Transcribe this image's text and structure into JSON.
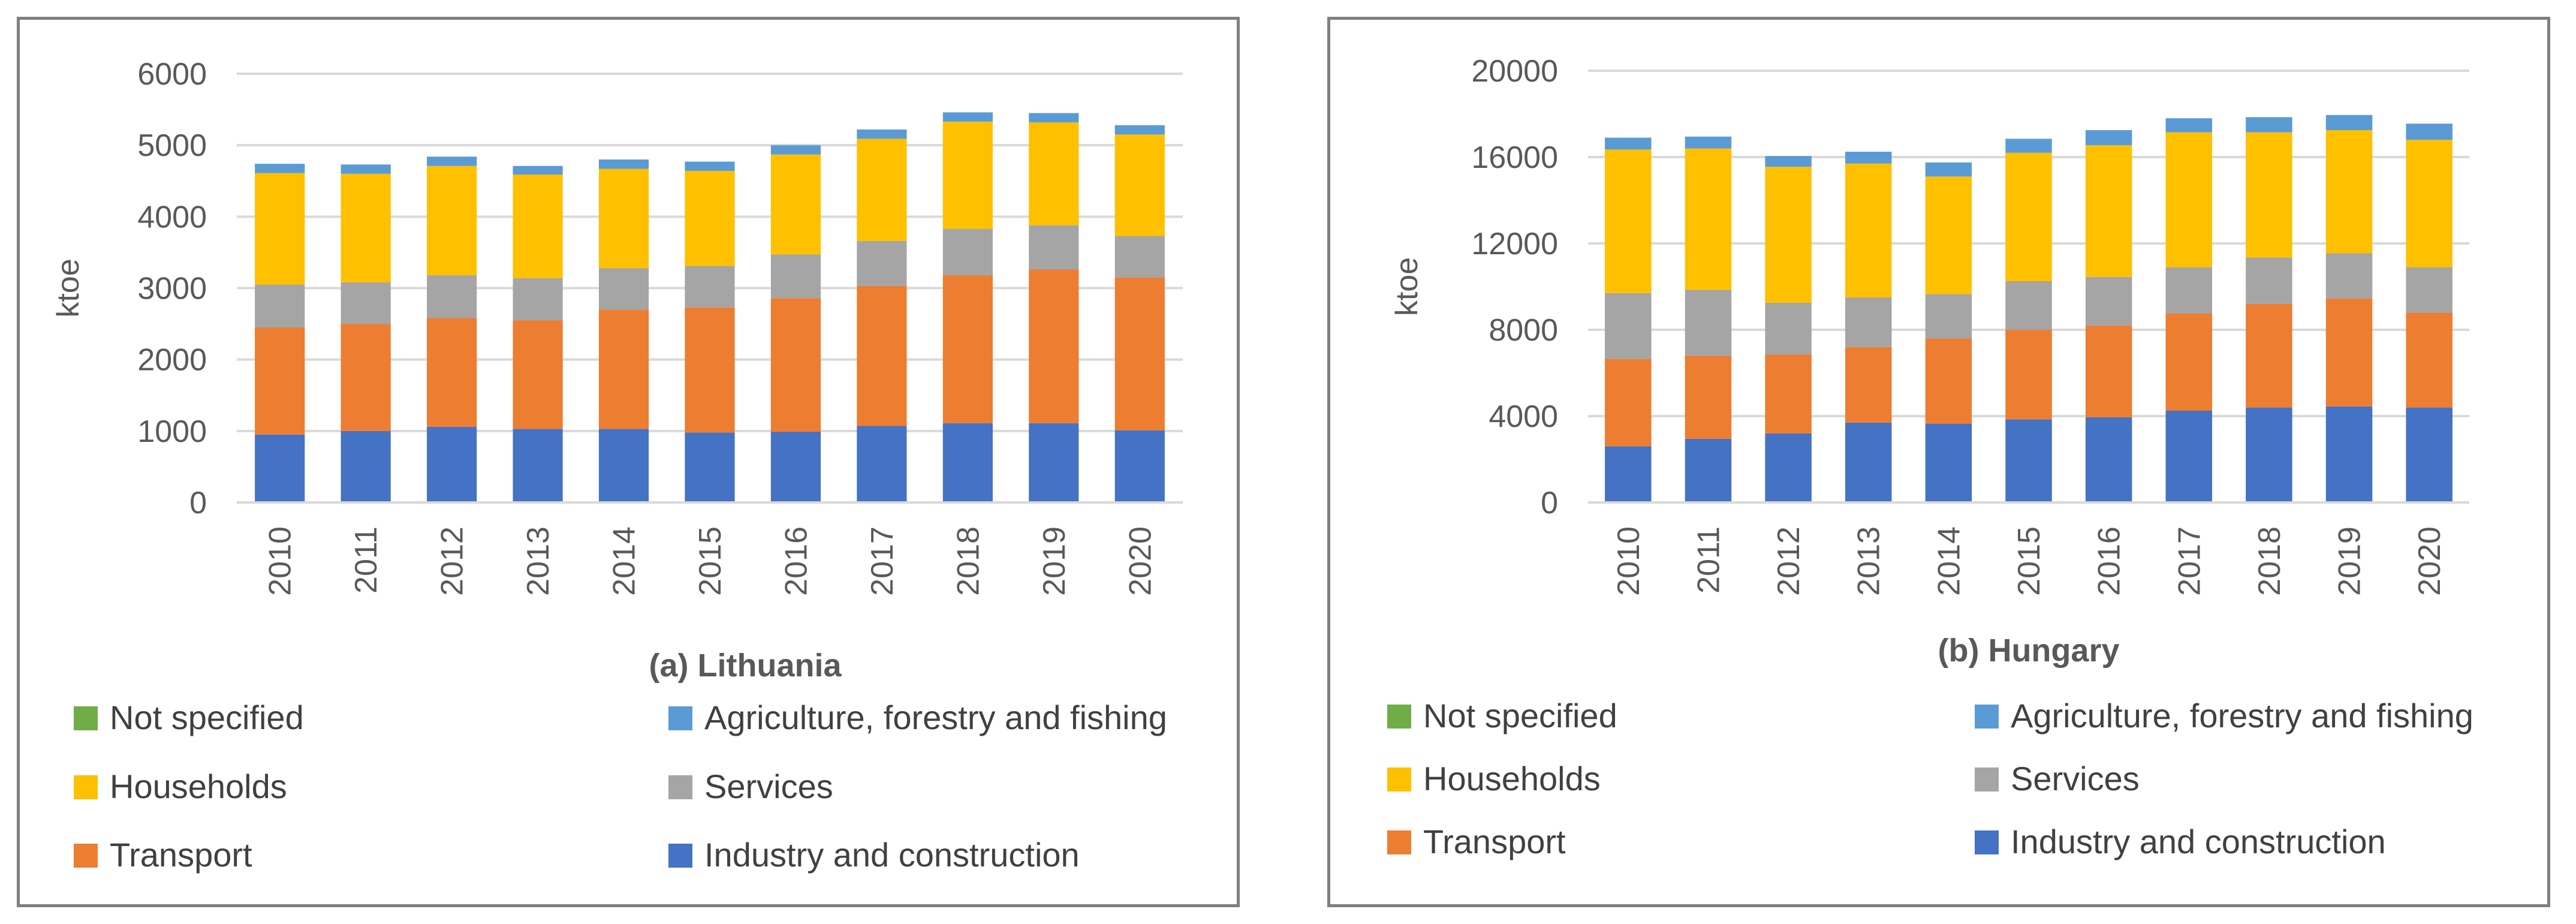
{
  "chart_data": [
    {
      "type": "bar",
      "stacked": true,
      "caption": "(a) Lithuania",
      "ylabel": "ktoe",
      "xlabel": "",
      "ylim": [
        0,
        6000
      ],
      "yticks": [
        "0",
        "1000",
        "2000",
        "3000",
        "4000",
        "5000",
        "6000"
      ],
      "categories": [
        "2010",
        "2011",
        "2012",
        "2013",
        "2014",
        "2015",
        "2016",
        "2017",
        "2018",
        "2019",
        "2020"
      ],
      "grid": true,
      "legend_position": "bottom",
      "series": [
        {
          "name": "Industry and construction",
          "color": "#4472c4",
          "values": [
            950,
            1000,
            1060,
            1030,
            1030,
            980,
            990,
            1070,
            1110,
            1110,
            1010
          ]
        },
        {
          "name": "Transport",
          "color": "#ed7d31",
          "values": [
            1500,
            1500,
            1520,
            1520,
            1670,
            1750,
            1870,
            1960,
            2070,
            2150,
            2140
          ]
        },
        {
          "name": "Services",
          "color": "#a5a5a5",
          "values": [
            600,
            580,
            600,
            590,
            580,
            580,
            610,
            630,
            650,
            620,
            580
          ]
        },
        {
          "name": "Households",
          "color": "#ffc000",
          "values": [
            1560,
            1520,
            1530,
            1450,
            1390,
            1330,
            1400,
            1430,
            1500,
            1440,
            1420
          ]
        },
        {
          "name": "Agriculture, forestry and fishing",
          "color": "#5b9bd5",
          "values": [
            130,
            130,
            130,
            120,
            130,
            130,
            130,
            130,
            130,
            130,
            130
          ]
        },
        {
          "name": "Not specified",
          "color": "#70ad47",
          "values": [
            0,
            0,
            0,
            0,
            0,
            0,
            0,
            0,
            0,
            0,
            0
          ]
        }
      ]
    },
    {
      "type": "bar",
      "stacked": true,
      "caption": "(b) Hungary",
      "ylabel": "ktoe",
      "xlabel": "",
      "ylim": [
        0,
        20000
      ],
      "yticks": [
        "0",
        "4000",
        "8000",
        "12000",
        "16000",
        "20000"
      ],
      "categories": [
        "2010",
        "2011",
        "2012",
        "2013",
        "2014",
        "2015",
        "2016",
        "2017",
        "2018",
        "2019",
        "2020"
      ],
      "grid": true,
      "legend_position": "bottom",
      "series": [
        {
          "name": "Industry and construction",
          "color": "#4472c4",
          "values": [
            2600,
            2950,
            3200,
            3700,
            3650,
            3850,
            3950,
            4250,
            4400,
            4450,
            4400
          ]
        },
        {
          "name": "Transport",
          "color": "#ed7d31",
          "values": [
            4050,
            3850,
            3650,
            3500,
            3950,
            4150,
            4250,
            4500,
            4800,
            5000,
            4400
          ]
        },
        {
          "name": "Services",
          "color": "#a5a5a5",
          "values": [
            3050,
            3050,
            2400,
            2300,
            2050,
            2250,
            2250,
            2150,
            2150,
            2100,
            2100
          ]
        },
        {
          "name": "Households",
          "color": "#ffc000",
          "values": [
            6650,
            6550,
            6300,
            6200,
            5450,
            5950,
            6100,
            6250,
            5800,
            5700,
            5900
          ]
        },
        {
          "name": "Agriculture, forestry and fishing",
          "color": "#5b9bd5",
          "values": [
            550,
            550,
            500,
            550,
            650,
            650,
            700,
            650,
            700,
            700,
            750
          ]
        },
        {
          "name": "Not specified",
          "color": "#70ad47",
          "values": [
            0,
            0,
            0,
            0,
            0,
            0,
            0,
            0,
            0,
            0,
            0
          ]
        }
      ]
    }
  ],
  "legend_order": [
    "Not specified",
    "Agriculture, forestry and fishing",
    "Households",
    "Services",
    "Transport",
    "Industry and construction"
  ]
}
